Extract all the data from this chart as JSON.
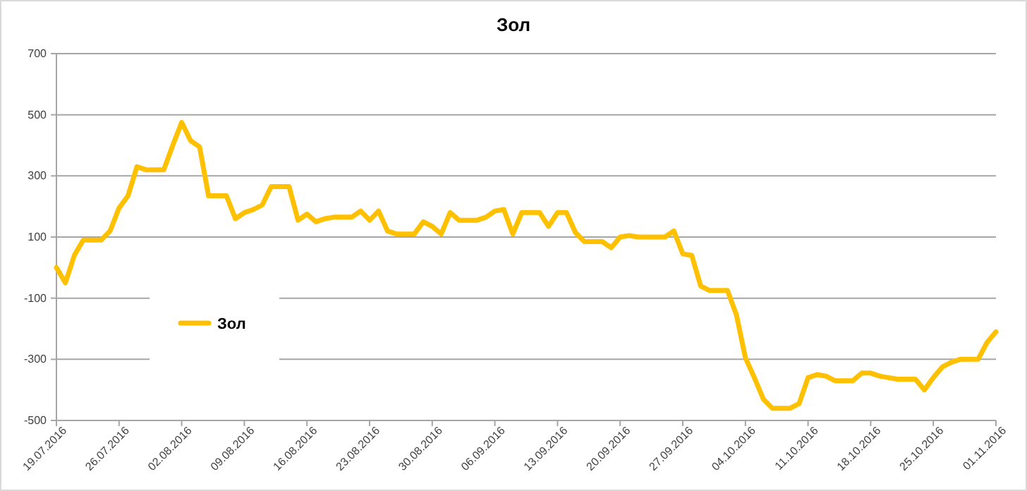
{
  "chart_data": {
    "type": "line",
    "title": "Зол",
    "x": [
      "2016-07-19",
      "2016-07-20",
      "2016-07-21",
      "2016-07-22",
      "2016-07-24",
      "2016-07-25",
      "2016-07-26",
      "2016-07-27",
      "2016-07-28",
      "2016-07-29",
      "2016-07-31",
      "2016-08-01",
      "2016-08-02",
      "2016-08-03",
      "2016-08-04",
      "2016-08-05",
      "2016-08-07",
      "2016-08-08",
      "2016-08-09",
      "2016-08-10",
      "2016-08-11",
      "2016-08-12",
      "2016-08-14",
      "2016-08-15",
      "2016-08-16",
      "2016-08-17",
      "2016-08-18",
      "2016-08-19",
      "2016-08-21",
      "2016-08-22",
      "2016-08-23",
      "2016-08-24",
      "2016-08-25",
      "2016-08-26",
      "2016-08-28",
      "2016-08-29",
      "2016-08-30",
      "2016-08-31",
      "2016-09-01",
      "2016-09-02",
      "2016-09-04",
      "2016-09-05",
      "2016-09-06",
      "2016-09-07",
      "2016-09-08",
      "2016-09-09",
      "2016-09-11",
      "2016-09-12",
      "2016-09-13",
      "2016-09-14",
      "2016-09-15",
      "2016-09-16",
      "2016-09-18",
      "2016-09-19",
      "2016-09-20",
      "2016-09-21",
      "2016-09-22",
      "2016-09-23",
      "2016-09-25",
      "2016-09-26",
      "2016-09-27",
      "2016-09-28",
      "2016-09-29",
      "2016-09-30",
      "2016-10-02",
      "2016-10-03",
      "2016-10-04",
      "2016-10-05",
      "2016-10-06",
      "2016-10-07",
      "2016-10-09",
      "2016-10-10",
      "2016-10-11",
      "2016-10-12",
      "2016-10-13",
      "2016-10-14",
      "2016-10-16",
      "2016-10-17",
      "2016-10-18",
      "2016-10-19",
      "2016-10-20",
      "2016-10-21",
      "2016-10-23",
      "2016-10-24",
      "2016-10-25",
      "2016-10-26",
      "2016-10-27",
      "2016-10-28",
      "2016-10-30",
      "2016-10-31",
      "2016-11-01"
    ],
    "series": [
      {
        "name": "Зол",
        "color": "#ffc000",
        "values": [
          0,
          -50,
          40,
          90,
          90,
          120,
          195,
          235,
          330,
          320,
          320,
          400,
          475,
          415,
          395,
          235,
          235,
          160,
          180,
          190,
          205,
          265,
          265,
          155,
          175,
          150,
          160,
          165,
          165,
          185,
          155,
          185,
          120,
          110,
          110,
          150,
          135,
          110,
          180,
          155,
          155,
          165,
          185,
          190,
          110,
          180,
          180,
          135,
          180,
          180,
          115,
          85,
          85,
          65,
          100,
          105,
          100,
          100,
          100,
          120,
          45,
          40,
          -60,
          -75,
          -75,
          -155,
          -295,
          -360,
          -430,
          -460,
          -460,
          -445,
          -360,
          -350,
          -355,
          -370,
          -370,
          -345,
          -345,
          -355,
          -360,
          -365,
          -365,
          -400,
          -360,
          -325,
          -310,
          -300,
          -300,
          -245,
          -210
        ]
      }
    ],
    "xlim": [
      "2016-07-19",
      "2016-11-01"
    ],
    "xticks": [
      {
        "value": "2016-07-19",
        "label": "19.07.2016"
      },
      {
        "value": "2016-07-26",
        "label": "26.07.2016"
      },
      {
        "value": "2016-08-02",
        "label": "02.08.2016"
      },
      {
        "value": "2016-08-09",
        "label": "09.08.2016"
      },
      {
        "value": "2016-08-16",
        "label": "16.08.2016"
      },
      {
        "value": "2016-08-23",
        "label": "23.08.2016"
      },
      {
        "value": "2016-08-30",
        "label": "30.08.2016"
      },
      {
        "value": "2016-09-06",
        "label": "06.09.2016"
      },
      {
        "value": "2016-09-13",
        "label": "13.09.2016"
      },
      {
        "value": "2016-09-20",
        "label": "20.09.2016"
      },
      {
        "value": "2016-09-27",
        "label": "27.09.2016"
      },
      {
        "value": "2016-10-04",
        "label": "04.10.2016"
      },
      {
        "value": "2016-10-11",
        "label": "11.10.2016"
      },
      {
        "value": "2016-10-18",
        "label": "18.10.2016"
      },
      {
        "value": "2016-10-25",
        "label": "25.10.2016"
      },
      {
        "value": "2016-11-01",
        "label": "01.11.2016"
      }
    ],
    "ylim": [
      -500,
      700
    ],
    "yticks": [
      -500,
      -300,
      -100,
      100,
      300,
      500,
      700
    ],
    "grid": "y",
    "legend": "left",
    "marker": "none",
    "line_style": "solid"
  }
}
